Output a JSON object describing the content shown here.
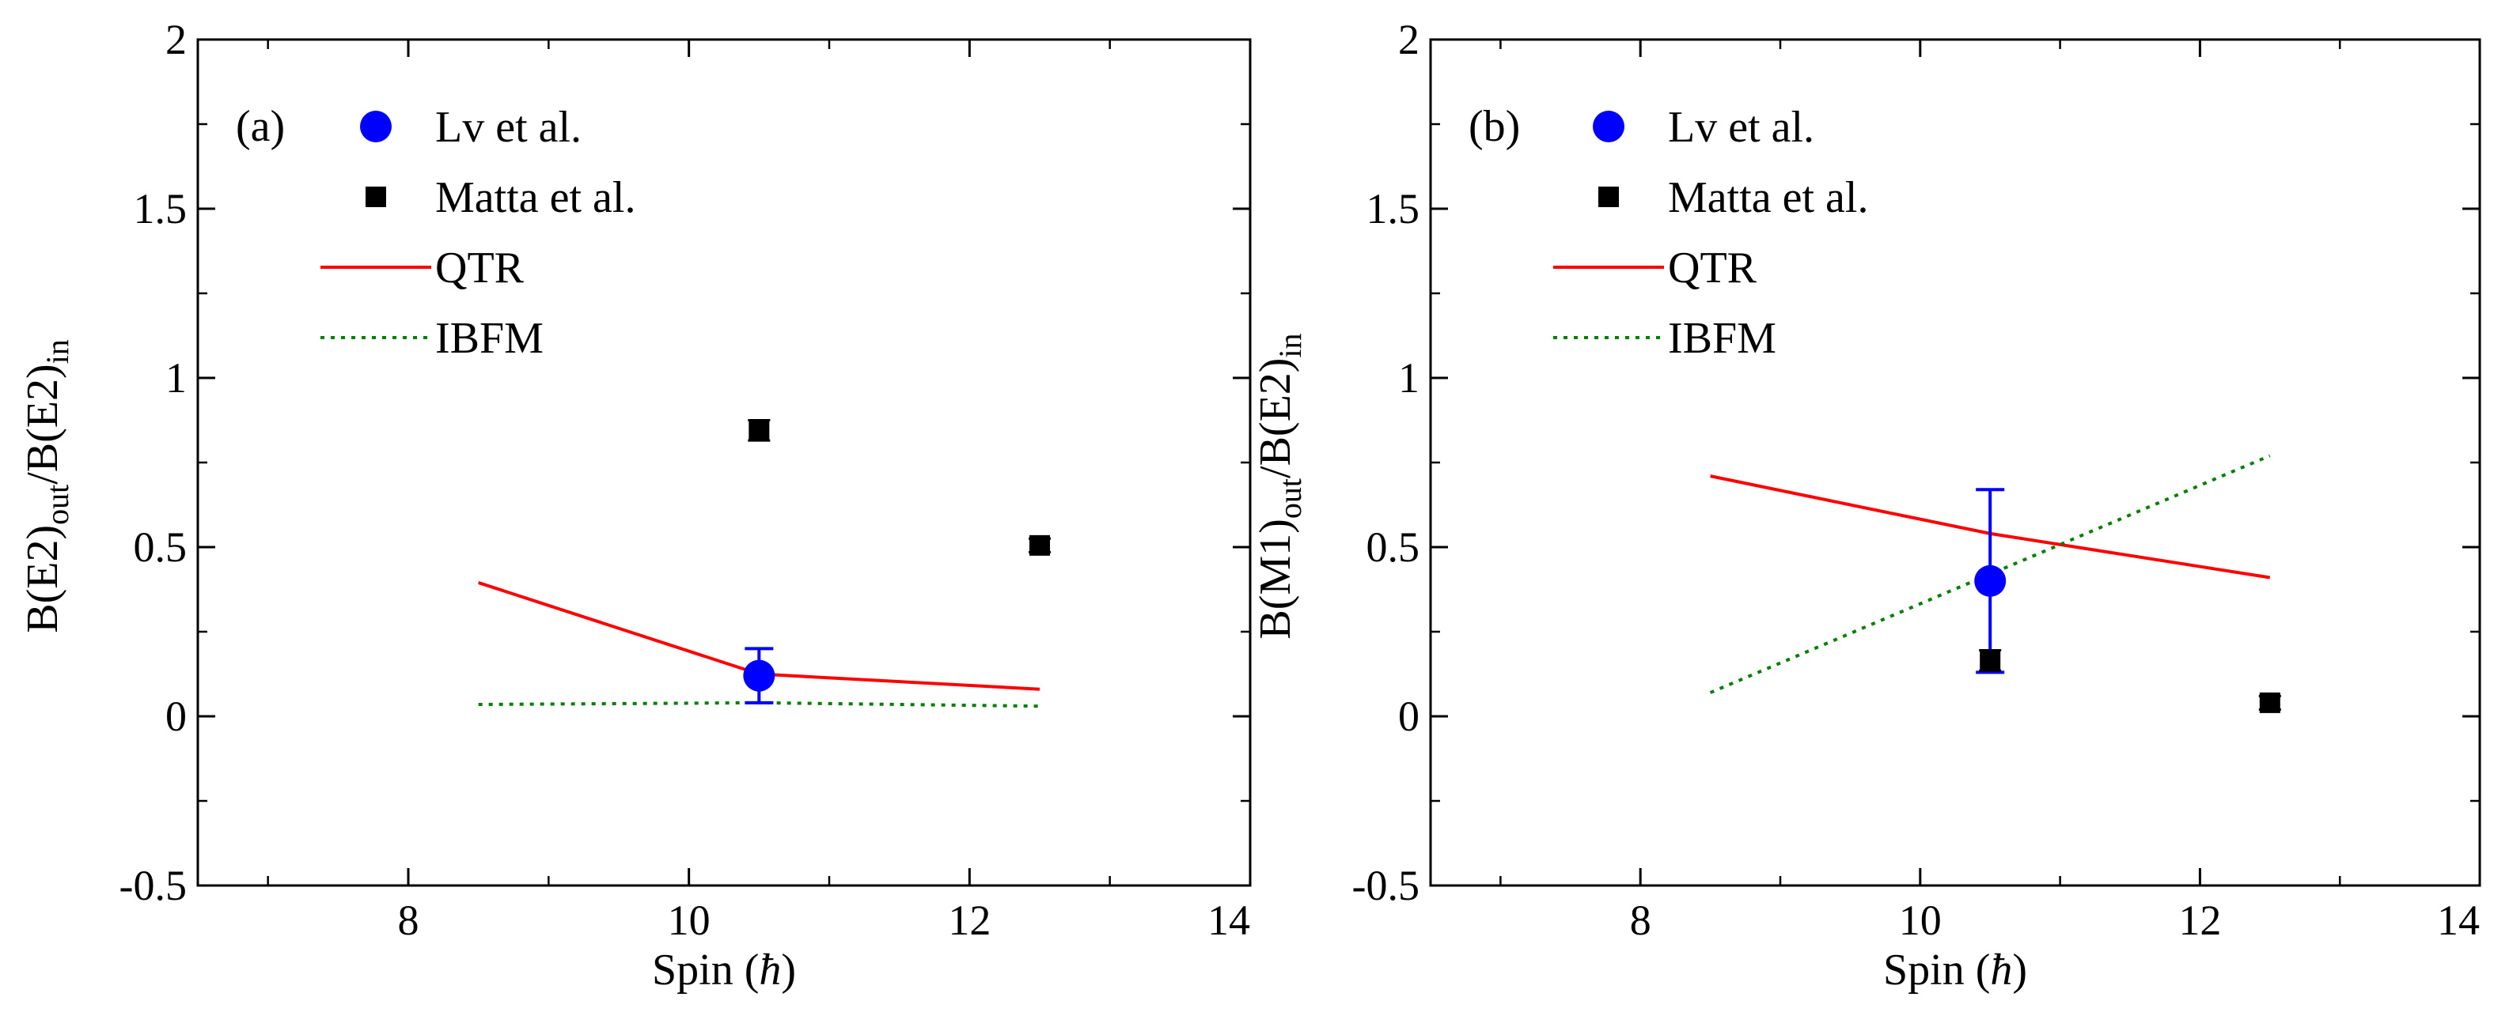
{
  "chart_data": [
    {
      "type": "scatter",
      "panel_label": "(a)",
      "xlabel": "Spin",
      "xunit": "ħ",
      "ylabel": {
        "b1": "B(E2)",
        "sub1": "out",
        "mid": "/B(E2)",
        "sub2": "in"
      },
      "xlim": [
        6.5,
        14
      ],
      "ylim": [
        -0.5,
        2
      ],
      "xticks": [
        8,
        10,
        12,
        14
      ],
      "xtick_labels": [
        "8",
        "10",
        "12",
        "14"
      ],
      "yticks": [
        -0.5,
        0,
        0.5,
        1,
        1.5,
        2
      ],
      "ytick_labels": [
        "-0.5",
        "0",
        "0.5",
        "1",
        "1.5",
        "2"
      ],
      "legend_position": "top-left",
      "series": [
        {
          "name": "Lv et al.",
          "kind": "circle",
          "color": "#0000ff",
          "x": [
            10.5
          ],
          "y": [
            0.12
          ],
          "yerr": [
            0.08
          ]
        },
        {
          "name": "Matta et al.",
          "kind": "square",
          "color": "#000000",
          "x": [
            10.5,
            12.5
          ],
          "y": [
            0.845,
            0.505
          ],
          "yerr": [
            0.03,
            0.02
          ]
        },
        {
          "name": "QTR",
          "kind": "line",
          "color": "#ff0000",
          "x": [
            8.5,
            10.5,
            12.5
          ],
          "y": [
            0.395,
            0.125,
            0.08
          ]
        },
        {
          "name": "IBFM",
          "kind": "dotted",
          "color": "#008000",
          "x": [
            8.5,
            10.5,
            12.5
          ],
          "y": [
            0.035,
            0.04,
            0.03
          ]
        }
      ]
    },
    {
      "type": "scatter",
      "panel_label": "(b)",
      "xlabel": "Spin",
      "xunit": "ħ",
      "ylabel": {
        "b1": "B(M1)",
        "sub1": "out",
        "mid": "/B(E2)",
        "sub2": "in"
      },
      "xlim": [
        6.5,
        14
      ],
      "ylim": [
        -0.5,
        2
      ],
      "xticks": [
        8,
        10,
        12,
        14
      ],
      "xtick_labels": [
        "8",
        "10",
        "12",
        "14"
      ],
      "yticks": [
        -0.5,
        0,
        0.5,
        1,
        1.5,
        2
      ],
      "ytick_labels": [
        "-0.5",
        "0",
        "0.5",
        "1",
        "1.5",
        "2"
      ],
      "legend_position": "top-left",
      "series": [
        {
          "name": "Lv et al.",
          "kind": "circle",
          "color": "#0000ff",
          "x": [
            10.5
          ],
          "y": [
            0.4
          ],
          "yerr": [
            0.27
          ]
        },
        {
          "name": "Matta et al.",
          "kind": "square",
          "color": "#000000",
          "x": [
            10.5,
            12.5
          ],
          "y": [
            0.165,
            0.04
          ],
          "yerr": [
            0.03,
            0.02
          ]
        },
        {
          "name": "QTR",
          "kind": "line",
          "color": "#ff0000",
          "x": [
            8.5,
            10.5,
            12.5
          ],
          "y": [
            0.71,
            0.54,
            0.41
          ]
        },
        {
          "name": "IBFM",
          "kind": "dotted",
          "color": "#008000",
          "x": [
            8.5,
            12.5
          ],
          "y": [
            0.07,
            0.77
          ]
        }
      ]
    }
  ]
}
